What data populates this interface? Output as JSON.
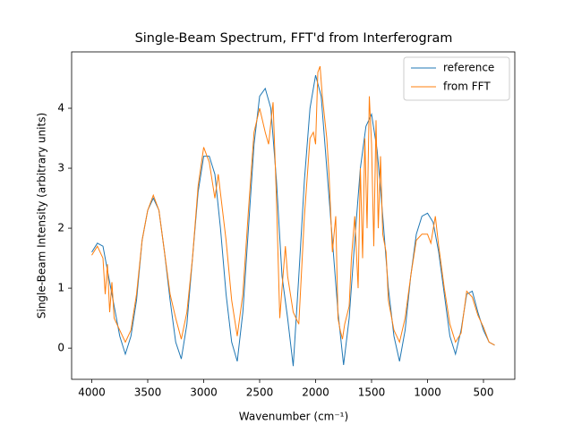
{
  "chart_data": {
    "type": "line",
    "title": "Single-Beam Spectrum, FFT'd from Interferogram",
    "x_label": "Wavenumber (cm⁻¹)",
    "y_label": "Single-Beam Intensity (arbitrary units)",
    "xlim": [
      4180,
      220
    ],
    "ylim": [
      -0.52,
      4.94
    ],
    "xticks": [
      4000,
      3500,
      3000,
      2500,
      2000,
      1500,
      1000,
      500
    ],
    "yticks": [
      0,
      1,
      2,
      3,
      4
    ],
    "legend": "upper right",
    "grid": false,
    "series": [
      {
        "name": "reference",
        "color": "#1f77b4",
        "x": [
          4000,
          3950,
          3900,
          3850,
          3800,
          3750,
          3700,
          3650,
          3600,
          3550,
          3500,
          3450,
          3400,
          3350,
          3300,
          3250,
          3200,
          3150,
          3100,
          3050,
          3000,
          2950,
          2900,
          2850,
          2800,
          2750,
          2700,
          2650,
          2600,
          2550,
          2500,
          2450,
          2400,
          2350,
          2300,
          2250,
          2200,
          2150,
          2100,
          2050,
          2000,
          1950,
          1900,
          1850,
          1800,
          1750,
          1700,
          1650,
          1600,
          1550,
          1500,
          1450,
          1400,
          1350,
          1300,
          1250,
          1200,
          1150,
          1100,
          1050,
          1000,
          950,
          900,
          850,
          800,
          750,
          700,
          650,
          600,
          550,
          500,
          450,
          400
        ],
        "values": [
          1.6,
          1.75,
          1.7,
          1.2,
          0.7,
          0.2,
          -0.1,
          0.2,
          0.8,
          1.8,
          2.3,
          2.5,
          2.3,
          1.6,
          0.8,
          0.1,
          -0.18,
          0.4,
          1.5,
          2.6,
          3.2,
          3.2,
          2.9,
          2.0,
          0.9,
          0.1,
          -0.22,
          0.6,
          2.0,
          3.4,
          4.2,
          4.33,
          4.0,
          2.8,
          1.2,
          0.5,
          -0.3,
          1.2,
          2.8,
          4.0,
          4.55,
          4.2,
          3.0,
          1.8,
          0.6,
          -0.28,
          0.5,
          1.8,
          3.0,
          3.7,
          3.9,
          3.3,
          2.2,
          1.0,
          0.2,
          -0.22,
          0.3,
          1.2,
          1.9,
          2.2,
          2.25,
          2.1,
          1.6,
          0.9,
          0.2,
          -0.1,
          0.3,
          0.9,
          0.95,
          0.6,
          0.3,
          0.1,
          0.05
        ]
      },
      {
        "name": "from FFT",
        "color": "#ff7f0e",
        "x": [
          4000,
          3950,
          3900,
          3880,
          3860,
          3840,
          3820,
          3800,
          3750,
          3700,
          3650,
          3600,
          3550,
          3500,
          3450,
          3400,
          3350,
          3300,
          3250,
          3200,
          3150,
          3100,
          3050,
          3000,
          2950,
          2900,
          2870,
          2800,
          2750,
          2700,
          2650,
          2600,
          2550,
          2500,
          2450,
          2420,
          2380,
          2350,
          2320,
          2300,
          2270,
          2250,
          2200,
          2150,
          2100,
          2050,
          2020,
          2000,
          1980,
          1960,
          1940,
          1900,
          1880,
          1850,
          1820,
          1800,
          1780,
          1760,
          1740,
          1700,
          1680,
          1650,
          1620,
          1600,
          1580,
          1560,
          1540,
          1520,
          1500,
          1480,
          1460,
          1440,
          1420,
          1400,
          1370,
          1350,
          1300,
          1250,
          1200,
          1150,
          1100,
          1050,
          1000,
          970,
          930,
          900,
          850,
          800,
          750,
          700,
          650,
          600,
          550,
          500,
          450,
          400
        ],
        "values": [
          1.55,
          1.7,
          1.5,
          0.9,
          1.4,
          0.6,
          1.1,
          0.5,
          0.3,
          0.1,
          0.3,
          0.9,
          1.8,
          2.3,
          2.55,
          2.3,
          1.6,
          0.9,
          0.5,
          0.15,
          0.6,
          1.5,
          2.7,
          3.35,
          3.1,
          2.5,
          2.9,
          1.8,
          0.8,
          0.2,
          0.9,
          2.3,
          3.6,
          4.0,
          3.6,
          3.4,
          4.1,
          2.5,
          0.5,
          1.0,
          1.7,
          1.2,
          0.6,
          0.4,
          2.2,
          3.5,
          3.6,
          3.4,
          4.6,
          4.7,
          4.2,
          3.5,
          2.9,
          1.6,
          2.2,
          0.5,
          0.3,
          0.15,
          0.4,
          0.7,
          1.5,
          2.2,
          1.0,
          3.0,
          1.5,
          3.5,
          2.0,
          4.2,
          3.4,
          1.7,
          3.8,
          2.0,
          3.2,
          1.9,
          1.6,
          0.8,
          0.3,
          0.1,
          0.5,
          1.2,
          1.8,
          1.9,
          1.9,
          1.75,
          2.2,
          1.7,
          1.0,
          0.4,
          0.1,
          0.25,
          0.95,
          0.85,
          0.55,
          0.35,
          0.1,
          0.05
        ]
      }
    ]
  }
}
